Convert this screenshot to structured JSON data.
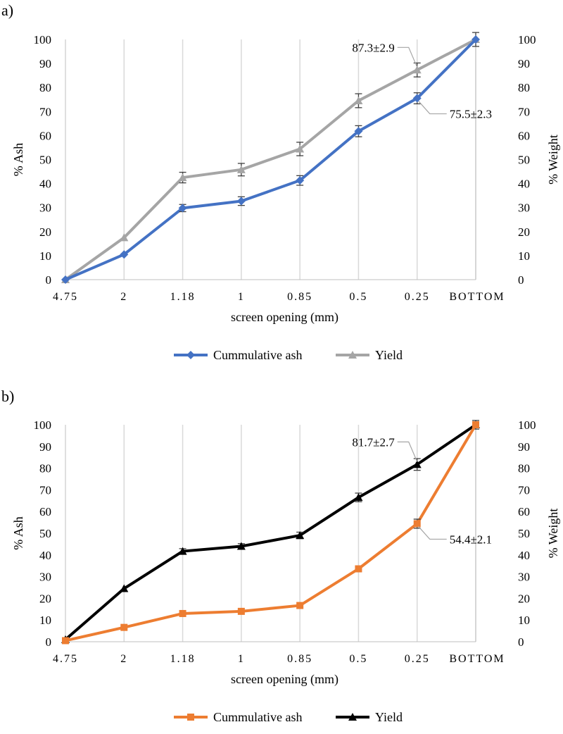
{
  "chart_data": [
    {
      "type": "line",
      "panel_label": "a)",
      "categories": [
        "4.75",
        "2",
        "1.18",
        "1",
        "0.85",
        "0.5",
        "0.25",
        "BOTTOM"
      ],
      "xlabel": "screen opening (mm)",
      "ylabel": "% Ash",
      "y2label": "% Weight",
      "ylim": [
        0,
        100
      ],
      "y2lim": [
        0,
        100
      ],
      "yticks": [
        "0",
        "10",
        "20",
        "30",
        "40",
        "50",
        "60",
        "70",
        "80",
        "90",
        "100"
      ],
      "grid": "vertical",
      "legend_position": "bottom",
      "series": [
        {
          "name": "Cummulative ash",
          "color": "#4472C4",
          "marker": "diamond",
          "values": [
            0,
            10.5,
            29.8,
            32.7,
            41.3,
            61.8,
            75.5,
            100
          ],
          "errors": [
            0,
            0,
            1.5,
            1.8,
            2.0,
            2.3,
            2.3,
            0
          ]
        },
        {
          "name": "Yield",
          "color": "#A5A5A5",
          "marker": "triangle",
          "values": [
            0,
            17.5,
            42.5,
            45.8,
            54.4,
            74.5,
            87.3,
            100
          ],
          "errors": [
            0,
            0,
            2.2,
            2.6,
            2.8,
            2.9,
            2.9,
            2.9
          ]
        }
      ],
      "annotations": [
        {
          "text": "87.3±2.9",
          "series": 1,
          "index": 6,
          "side": "left"
        },
        {
          "text": "75.5±2.3",
          "series": 0,
          "index": 6,
          "side": "right"
        }
      ]
    },
    {
      "type": "line",
      "panel_label": "b)",
      "categories": [
        "4.75",
        "2",
        "1.18",
        "1",
        "0.85",
        "0.5",
        "0.25",
        "BOTTOM"
      ],
      "xlabel": "screen opening (mm)",
      "ylabel": "% Ash",
      "y2label": "% Weight",
      "ylim": [
        0,
        100
      ],
      "y2lim": [
        0,
        100
      ],
      "yticks": [
        "0",
        "10",
        "20",
        "30",
        "40",
        "50",
        "60",
        "70",
        "80",
        "90",
        "100"
      ],
      "grid": "vertical",
      "legend_position": "bottom",
      "series": [
        {
          "name": "Cummulative ash",
          "color": "#ED7D31",
          "marker": "square",
          "values": [
            0.5,
            6.6,
            13,
            14,
            16.7,
            33.6,
            54.4,
            100
          ],
          "errors": [
            0,
            0,
            0,
            0,
            0,
            0,
            2.1,
            0
          ]
        },
        {
          "name": "Yield",
          "color": "#000000",
          "marker": "triangle",
          "values": [
            1,
            24.5,
            41.7,
            44,
            49,
            66.5,
            81.7,
            100
          ],
          "errors": [
            0,
            0,
            1.2,
            1.2,
            1.5,
            2.0,
            2.7,
            2.0
          ]
        }
      ],
      "annotations": [
        {
          "text": "81.7±2.7",
          "series": 1,
          "index": 6,
          "side": "left"
        },
        {
          "text": "54.4±2.1",
          "series": 0,
          "index": 6,
          "side": "right"
        }
      ]
    }
  ]
}
